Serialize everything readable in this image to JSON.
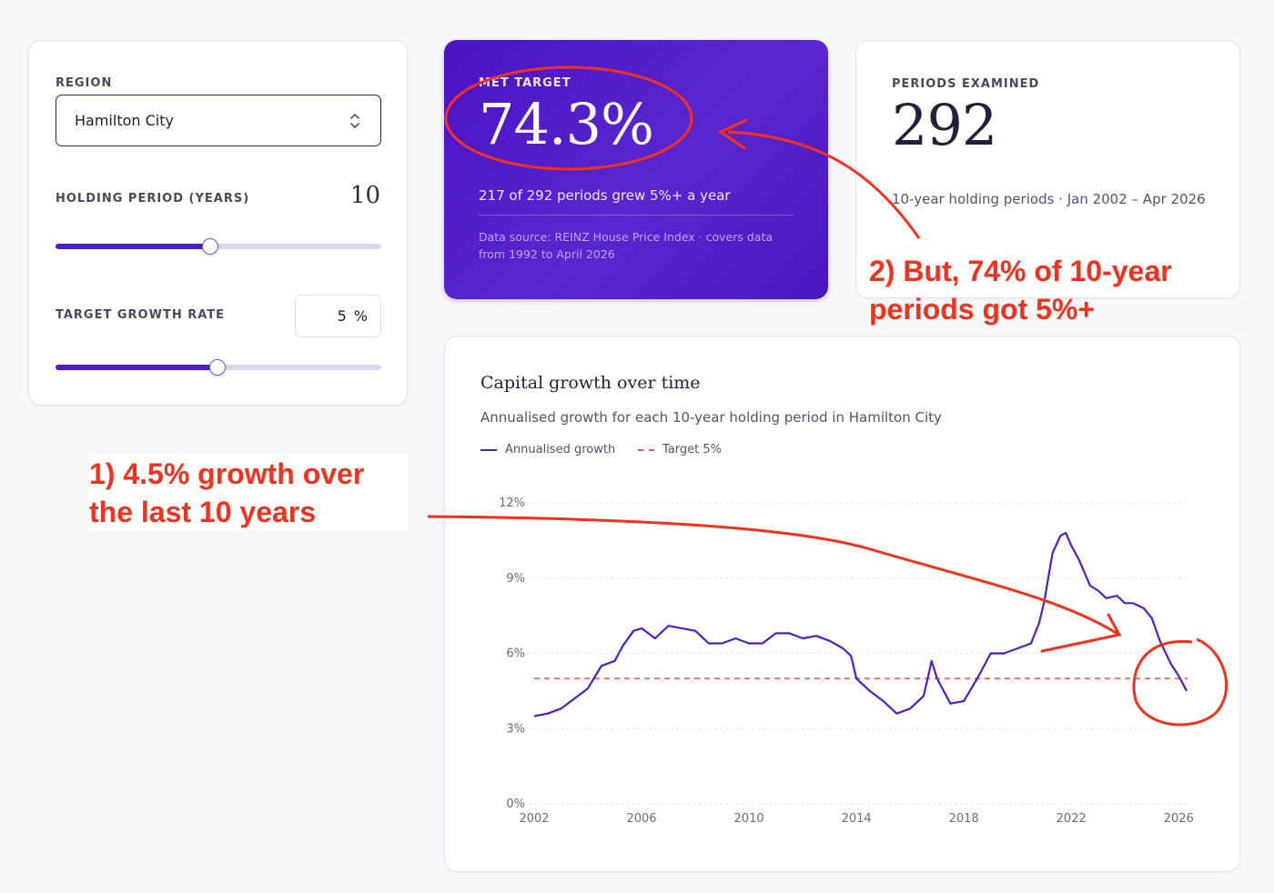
{
  "controls": {
    "region_label": "REGION",
    "region_value": "Hamilton City",
    "holding_label": "HOLDING PERIOD (YEARS)",
    "holding_value": "10",
    "holding_fraction": 0.475,
    "target_label": "TARGET GROWTH RATE",
    "target_value": "5",
    "target_unit": "%",
    "target_fraction": 0.497
  },
  "met_target": {
    "label": "MET TARGET",
    "value": "74.3%",
    "summary": "217 of 292 periods grew 5%+ a year",
    "source": "Data source: REINZ House Price Index · covers data from 1992 to April 2026"
  },
  "periods": {
    "label": "PERIODS EXAMINED",
    "value": "292",
    "summary": "10-year holding periods · Jan 2002 – Apr 2026"
  },
  "annotations": {
    "note1": "1) 4.5% growth over the last 10 years",
    "note2": "2) But, 74% of 10-year periods got 5%+"
  },
  "colors": {
    "accent": "#4f1fc4",
    "target_line": "#f0554a",
    "annotation": "#f4311d"
  },
  "chart_data": {
    "type": "line",
    "title": "Capital growth over time",
    "subtitle": "Annualised growth for each 10-year holding period in Hamilton City",
    "legend": [
      "Annualised growth",
      "Target 5%"
    ],
    "x_ticks": [
      "2002",
      "2006",
      "2010",
      "2014",
      "2018",
      "2022",
      "2026"
    ],
    "y_ticks": [
      "0%",
      "3%",
      "6%",
      "9%",
      "12%"
    ],
    "xlim": [
      2002,
      2026.33
    ],
    "ylim": [
      0,
      12
    ],
    "target": 5,
    "series": [
      {
        "name": "Annualised growth",
        "x": [
          2002.0,
          2002.5,
          2003.0,
          2003.5,
          2004.0,
          2004.5,
          2005.0,
          2005.3,
          2005.7,
          2006.0,
          2006.5,
          2007.0,
          2007.5,
          2008.0,
          2008.5,
          2009.0,
          2009.5,
          2010.0,
          2010.5,
          2011.0,
          2011.5,
          2012.0,
          2012.5,
          2013.0,
          2013.5,
          2013.8,
          2014.0,
          2014.5,
          2015.0,
          2015.5,
          2016.0,
          2016.5,
          2016.8,
          2017.0,
          2017.5,
          2018.0,
          2018.5,
          2019.0,
          2019.5,
          2020.0,
          2020.5,
          2020.8,
          2021.0,
          2021.3,
          2021.6,
          2021.8,
          2022.0,
          2022.3,
          2022.7,
          2023.0,
          2023.3,
          2023.7,
          2024.0,
          2024.3,
          2024.7,
          2025.0,
          2025.3,
          2025.7,
          2026.0,
          2026.3
        ],
        "values": [
          3.5,
          3.6,
          3.8,
          4.2,
          4.6,
          5.5,
          5.7,
          6.3,
          6.9,
          7.0,
          6.6,
          7.1,
          7.0,
          6.9,
          6.4,
          6.4,
          6.6,
          6.4,
          6.4,
          6.8,
          6.8,
          6.6,
          6.7,
          6.5,
          6.2,
          5.9,
          5.0,
          4.5,
          4.1,
          3.6,
          3.8,
          4.3,
          5.7,
          5.0,
          4.0,
          4.1,
          5.0,
          6.0,
          6.0,
          6.2,
          6.4,
          7.2,
          8.1,
          10.0,
          10.7,
          10.8,
          10.3,
          9.7,
          8.7,
          8.5,
          8.2,
          8.3,
          8.0,
          8.0,
          7.8,
          7.4,
          6.5,
          5.6,
          5.1,
          4.5
        ]
      }
    ]
  }
}
